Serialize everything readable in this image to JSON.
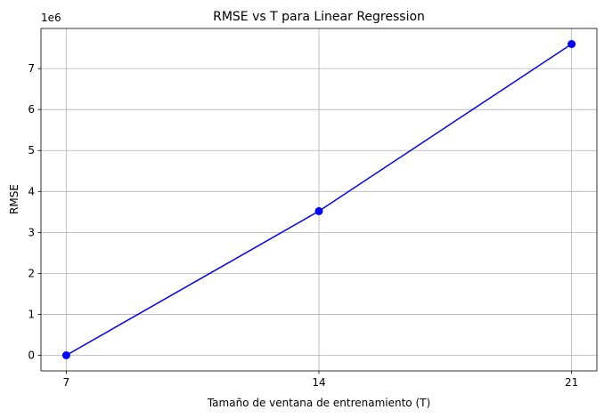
{
  "chart_data": {
    "type": "line",
    "title": "RMSE vs T para Linear Regression",
    "xlabel": "Tamaño de ventana de entrenamiento (T)",
    "ylabel": "RMSE",
    "offset_label": "1e6",
    "x": [
      7,
      14,
      21
    ],
    "x_ticks": [
      7,
      14,
      21
    ],
    "x_tick_labels": [
      "7",
      "14",
      "21"
    ],
    "y_ticks": [
      0,
      1,
      2,
      3,
      4,
      5,
      6,
      7
    ],
    "y_tick_labels": [
      "0",
      "1",
      "2",
      "3",
      "4",
      "5",
      "6",
      "7"
    ],
    "y_scale_factor": 1000000,
    "xlim": [
      6.3,
      21.7
    ],
    "ylim": [
      -380000,
      7980000
    ],
    "grid": true,
    "series": [
      {
        "values": [
          0,
          3520000,
          7600000
        ],
        "color": "#0000ff",
        "marker": "circle"
      }
    ]
  }
}
